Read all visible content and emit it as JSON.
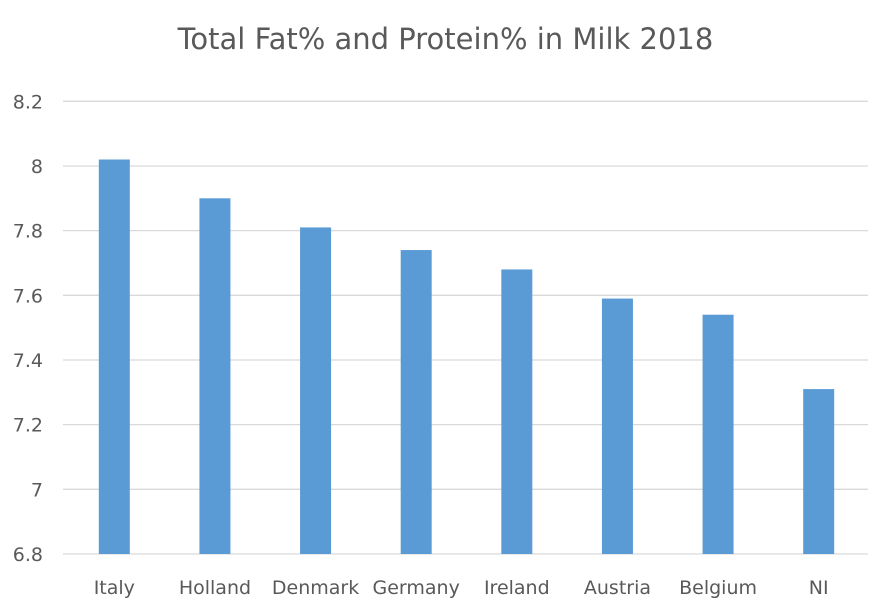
{
  "chart_data": {
    "type": "bar",
    "title": "Total Fat% and Protein% in Milk 2018",
    "xlabel": "",
    "ylabel": "",
    "categories": [
      "Italy",
      "Holland",
      "Denmark",
      "Germany",
      "Ireland",
      "Austria",
      "Belgium",
      "NI"
    ],
    "values": [
      8.02,
      7.9,
      7.81,
      7.74,
      7.68,
      7.59,
      7.54,
      7.31
    ],
    "ylim": [
      6.8,
      8.2
    ],
    "yticks": [
      "6.8",
      "7",
      "7.2",
      "7.4",
      "7.6",
      "7.8",
      "8",
      "8.2"
    ],
    "grid": true,
    "legend": "none",
    "bar_color": "#5b9bd5",
    "grid_color": "#d9d9d9"
  }
}
